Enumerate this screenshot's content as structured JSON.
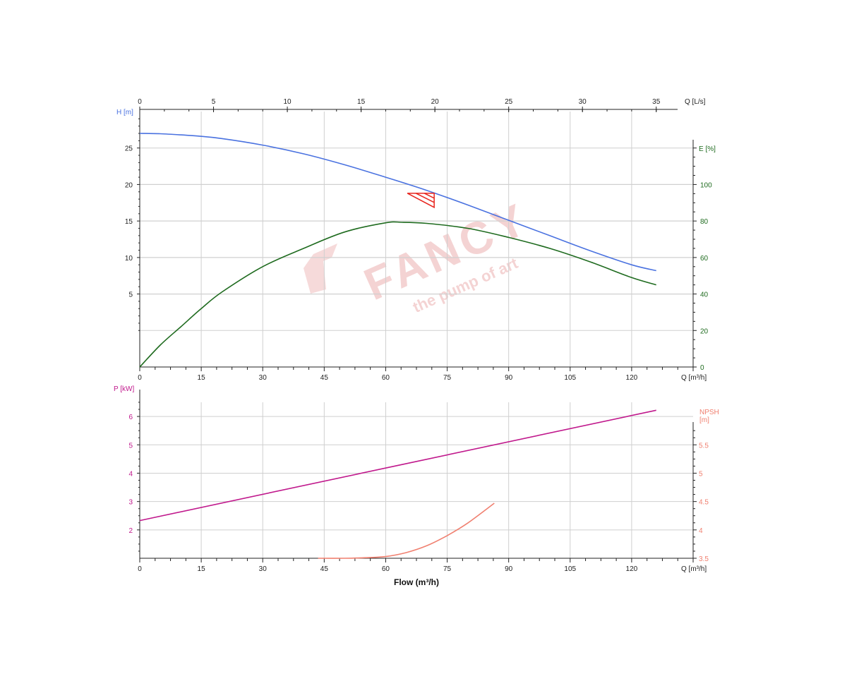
{
  "colors": {
    "head": "#4a72e0",
    "efficiency": "#1f6b1f",
    "power": "#c0188c",
    "npsh": "#f08070",
    "operating_point": "#e8261f",
    "axis": "#222222",
    "grid": "#cfcfcf",
    "watermark": "#f4d3d3"
  },
  "watermark": {
    "brand": "FANCY",
    "tagline": "the pump of art"
  },
  "chart_data": [
    {
      "type": "line",
      "name": "pump-curve-head-efficiency",
      "x_axis": {
        "label": "Q [m³/h]",
        "range": [
          0,
          135
        ],
        "ticks": [
          0,
          15,
          30,
          45,
          60,
          75,
          90,
          105,
          120
        ]
      },
      "x2_axis": {
        "label": "Q [L/s]",
        "range": [
          0,
          37.5
        ],
        "ticks": [
          0,
          5,
          10,
          15,
          20,
          25,
          30,
          35
        ]
      },
      "y_left": {
        "label": "H [m]",
        "range": [
          -5,
          30
        ],
        "ticks": [
          5,
          10,
          15,
          20,
          25
        ],
        "color": "#4a72e0"
      },
      "y_right": {
        "label": "E [%]",
        "range": [
          0,
          140
        ],
        "ticks": [
          0,
          20,
          40,
          60,
          80,
          100
        ],
        "color": "#1f6b1f"
      },
      "grid": true,
      "series": [
        {
          "axis": "left",
          "color": "#4a72e0",
          "x": [
            0,
            5,
            10,
            15,
            20,
            30,
            40,
            50,
            60,
            70,
            80,
            90,
            100,
            110,
            120,
            126
          ],
          "y": [
            27.0,
            26.95,
            26.8,
            26.6,
            26.3,
            25.4,
            24.2,
            22.7,
            21.0,
            19.2,
            17.2,
            15.1,
            13.0,
            10.9,
            9.0,
            8.2
          ]
        },
        {
          "axis": "right",
          "color": "#1f6b1f",
          "x": [
            0,
            5,
            10,
            15,
            20,
            30,
            40,
            50,
            60,
            64,
            70,
            80,
            90,
            100,
            110,
            120,
            126
          ],
          "y": [
            0,
            12,
            22,
            32,
            41,
            55,
            65,
            74,
            79,
            79.3,
            78.7,
            76,
            71,
            65,
            57.5,
            49,
            45
          ]
        }
      ],
      "operating_point": {
        "x": 72,
        "y": 18.8
      }
    },
    {
      "type": "line",
      "name": "pump-curve-power-npsh",
      "x_axis": {
        "label": "Q [m³/h]",
        "range": [
          0,
          135
        ],
        "ticks": [
          0,
          15,
          30,
          45,
          60,
          75,
          90,
          105,
          120
        ]
      },
      "y_left": {
        "label": "P [kW]",
        "range": [
          1,
          6.5
        ],
        "ticks": [
          2,
          3,
          4,
          5,
          6
        ],
        "color": "#c0188c"
      },
      "y_right": {
        "label_line1": "NPSH",
        "label_line2": "[m]",
        "range": [
          3.5,
          6.25
        ],
        "ticks": [
          3.5,
          4,
          4.5,
          5,
          5.5
        ],
        "color": "#f08070"
      },
      "grid": true,
      "series": [
        {
          "axis": "left",
          "color": "#c0188c",
          "x": [
            0,
            126
          ],
          "y": [
            2.33,
            6.22
          ]
        },
        {
          "axis": "right",
          "color": "#f08070",
          "x": [
            43.5,
            50,
            55,
            60,
            65,
            70,
            75,
            80,
            86.5
          ],
          "y": [
            3.5,
            3.5,
            3.51,
            3.53,
            3.6,
            3.72,
            3.9,
            4.12,
            4.47
          ]
        }
      ]
    }
  ],
  "footer": {
    "xlabel": "Flow (m³/h)"
  }
}
